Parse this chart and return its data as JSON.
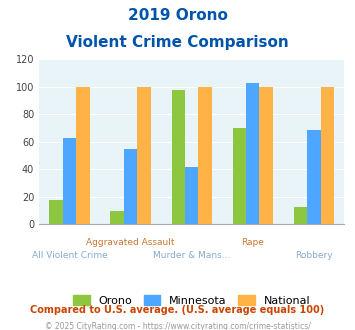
{
  "title_line1": "2019 Orono",
  "title_line2": "Violent Crime Comparison",
  "categories": [
    "All Violent Crime",
    "Aggravated Assault",
    "Murder & Mans...",
    "Rape",
    "Robbery"
  ],
  "series": {
    "Orono": [
      18,
      10,
      98,
      70,
      13
    ],
    "Minnesota": [
      63,
      55,
      42,
      103,
      69
    ],
    "National": [
      100,
      100,
      100,
      100,
      100
    ]
  },
  "colors": {
    "Orono": "#8DC63F",
    "Minnesota": "#4DA6FF",
    "National": "#FFB347"
  },
  "ylim": [
    0,
    120
  ],
  "yticks": [
    0,
    20,
    40,
    60,
    80,
    100,
    120
  ],
  "background_color": "#E8F4F8",
  "title_color": "#0055AA",
  "top_row_labels": [
    "",
    "Aggravated Assault",
    "",
    "Rape",
    ""
  ],
  "bottom_row_labels": [
    "All Violent Crime",
    "",
    "Murder & Mans...",
    "",
    "Robbery"
  ],
  "top_label_color": "#CC7733",
  "bottom_label_color": "#88AACC",
  "footnote1": "Compared to U.S. average. (U.S. average equals 100)",
  "footnote2": "© 2025 CityRating.com - https://www.cityrating.com/crime-statistics/",
  "footnote1_color": "#CC4400",
  "footnote2_color": "#999999"
}
